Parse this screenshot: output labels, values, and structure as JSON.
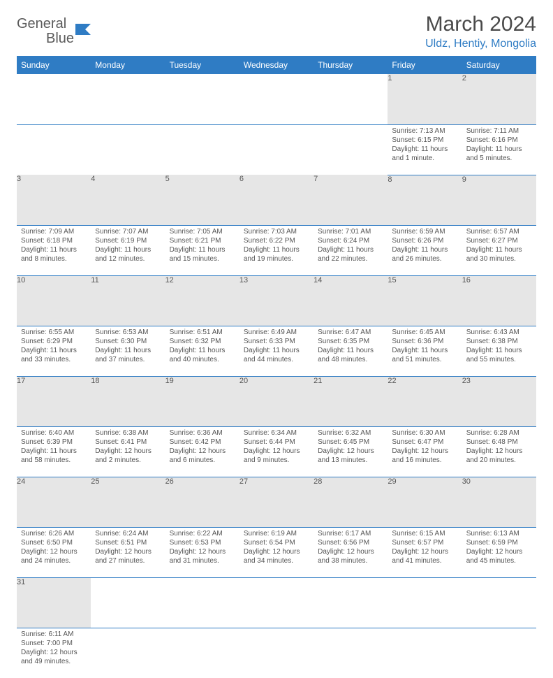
{
  "logo": {
    "text1": "General",
    "text2": "Blue"
  },
  "title": "March 2024",
  "location": "Uldz, Hentiy, Mongolia",
  "colors": {
    "brand": "#2f7cc4",
    "header_bg": "#2f7cc4",
    "header_text": "#ffffff",
    "daynum_bg": "#e6e6e6",
    "text": "#555555",
    "title_text": "#4a4a4a",
    "row_border": "#2f7cc4"
  },
  "weekdays": [
    "Sunday",
    "Monday",
    "Tuesday",
    "Wednesday",
    "Thursday",
    "Friday",
    "Saturday"
  ],
  "weeks": [
    [
      null,
      null,
      null,
      null,
      null,
      {
        "n": "1",
        "sr": "Sunrise: 7:13 AM",
        "ss": "Sunset: 6:15 PM",
        "d1": "Daylight: 11 hours",
        "d2": "and 1 minute."
      },
      {
        "n": "2",
        "sr": "Sunrise: 7:11 AM",
        "ss": "Sunset: 6:16 PM",
        "d1": "Daylight: 11 hours",
        "d2": "and 5 minutes."
      }
    ],
    [
      {
        "n": "3",
        "sr": "Sunrise: 7:09 AM",
        "ss": "Sunset: 6:18 PM",
        "d1": "Daylight: 11 hours",
        "d2": "and 8 minutes."
      },
      {
        "n": "4",
        "sr": "Sunrise: 7:07 AM",
        "ss": "Sunset: 6:19 PM",
        "d1": "Daylight: 11 hours",
        "d2": "and 12 minutes."
      },
      {
        "n": "5",
        "sr": "Sunrise: 7:05 AM",
        "ss": "Sunset: 6:21 PM",
        "d1": "Daylight: 11 hours",
        "d2": "and 15 minutes."
      },
      {
        "n": "6",
        "sr": "Sunrise: 7:03 AM",
        "ss": "Sunset: 6:22 PM",
        "d1": "Daylight: 11 hours",
        "d2": "and 19 minutes."
      },
      {
        "n": "7",
        "sr": "Sunrise: 7:01 AM",
        "ss": "Sunset: 6:24 PM",
        "d1": "Daylight: 11 hours",
        "d2": "and 22 minutes."
      },
      {
        "n": "8",
        "sr": "Sunrise: 6:59 AM",
        "ss": "Sunset: 6:26 PM",
        "d1": "Daylight: 11 hours",
        "d2": "and 26 minutes."
      },
      {
        "n": "9",
        "sr": "Sunrise: 6:57 AM",
        "ss": "Sunset: 6:27 PM",
        "d1": "Daylight: 11 hours",
        "d2": "and 30 minutes."
      }
    ],
    [
      {
        "n": "10",
        "sr": "Sunrise: 6:55 AM",
        "ss": "Sunset: 6:29 PM",
        "d1": "Daylight: 11 hours",
        "d2": "and 33 minutes."
      },
      {
        "n": "11",
        "sr": "Sunrise: 6:53 AM",
        "ss": "Sunset: 6:30 PM",
        "d1": "Daylight: 11 hours",
        "d2": "and 37 minutes."
      },
      {
        "n": "12",
        "sr": "Sunrise: 6:51 AM",
        "ss": "Sunset: 6:32 PM",
        "d1": "Daylight: 11 hours",
        "d2": "and 40 minutes."
      },
      {
        "n": "13",
        "sr": "Sunrise: 6:49 AM",
        "ss": "Sunset: 6:33 PM",
        "d1": "Daylight: 11 hours",
        "d2": "and 44 minutes."
      },
      {
        "n": "14",
        "sr": "Sunrise: 6:47 AM",
        "ss": "Sunset: 6:35 PM",
        "d1": "Daylight: 11 hours",
        "d2": "and 48 minutes."
      },
      {
        "n": "15",
        "sr": "Sunrise: 6:45 AM",
        "ss": "Sunset: 6:36 PM",
        "d1": "Daylight: 11 hours",
        "d2": "and 51 minutes."
      },
      {
        "n": "16",
        "sr": "Sunrise: 6:43 AM",
        "ss": "Sunset: 6:38 PM",
        "d1": "Daylight: 11 hours",
        "d2": "and 55 minutes."
      }
    ],
    [
      {
        "n": "17",
        "sr": "Sunrise: 6:40 AM",
        "ss": "Sunset: 6:39 PM",
        "d1": "Daylight: 11 hours",
        "d2": "and 58 minutes."
      },
      {
        "n": "18",
        "sr": "Sunrise: 6:38 AM",
        "ss": "Sunset: 6:41 PM",
        "d1": "Daylight: 12 hours",
        "d2": "and 2 minutes."
      },
      {
        "n": "19",
        "sr": "Sunrise: 6:36 AM",
        "ss": "Sunset: 6:42 PM",
        "d1": "Daylight: 12 hours",
        "d2": "and 6 minutes."
      },
      {
        "n": "20",
        "sr": "Sunrise: 6:34 AM",
        "ss": "Sunset: 6:44 PM",
        "d1": "Daylight: 12 hours",
        "d2": "and 9 minutes."
      },
      {
        "n": "21",
        "sr": "Sunrise: 6:32 AM",
        "ss": "Sunset: 6:45 PM",
        "d1": "Daylight: 12 hours",
        "d2": "and 13 minutes."
      },
      {
        "n": "22",
        "sr": "Sunrise: 6:30 AM",
        "ss": "Sunset: 6:47 PM",
        "d1": "Daylight: 12 hours",
        "d2": "and 16 minutes."
      },
      {
        "n": "23",
        "sr": "Sunrise: 6:28 AM",
        "ss": "Sunset: 6:48 PM",
        "d1": "Daylight: 12 hours",
        "d2": "and 20 minutes."
      }
    ],
    [
      {
        "n": "24",
        "sr": "Sunrise: 6:26 AM",
        "ss": "Sunset: 6:50 PM",
        "d1": "Daylight: 12 hours",
        "d2": "and 24 minutes."
      },
      {
        "n": "25",
        "sr": "Sunrise: 6:24 AM",
        "ss": "Sunset: 6:51 PM",
        "d1": "Daylight: 12 hours",
        "d2": "and 27 minutes."
      },
      {
        "n": "26",
        "sr": "Sunrise: 6:22 AM",
        "ss": "Sunset: 6:53 PM",
        "d1": "Daylight: 12 hours",
        "d2": "and 31 minutes."
      },
      {
        "n": "27",
        "sr": "Sunrise: 6:19 AM",
        "ss": "Sunset: 6:54 PM",
        "d1": "Daylight: 12 hours",
        "d2": "and 34 minutes."
      },
      {
        "n": "28",
        "sr": "Sunrise: 6:17 AM",
        "ss": "Sunset: 6:56 PM",
        "d1": "Daylight: 12 hours",
        "d2": "and 38 minutes."
      },
      {
        "n": "29",
        "sr": "Sunrise: 6:15 AM",
        "ss": "Sunset: 6:57 PM",
        "d1": "Daylight: 12 hours",
        "d2": "and 41 minutes."
      },
      {
        "n": "30",
        "sr": "Sunrise: 6:13 AM",
        "ss": "Sunset: 6:59 PM",
        "d1": "Daylight: 12 hours",
        "d2": "and 45 minutes."
      }
    ],
    [
      {
        "n": "31",
        "sr": "Sunrise: 6:11 AM",
        "ss": "Sunset: 7:00 PM",
        "d1": "Daylight: 12 hours",
        "d2": "and 49 minutes."
      },
      null,
      null,
      null,
      null,
      null,
      null
    ]
  ]
}
